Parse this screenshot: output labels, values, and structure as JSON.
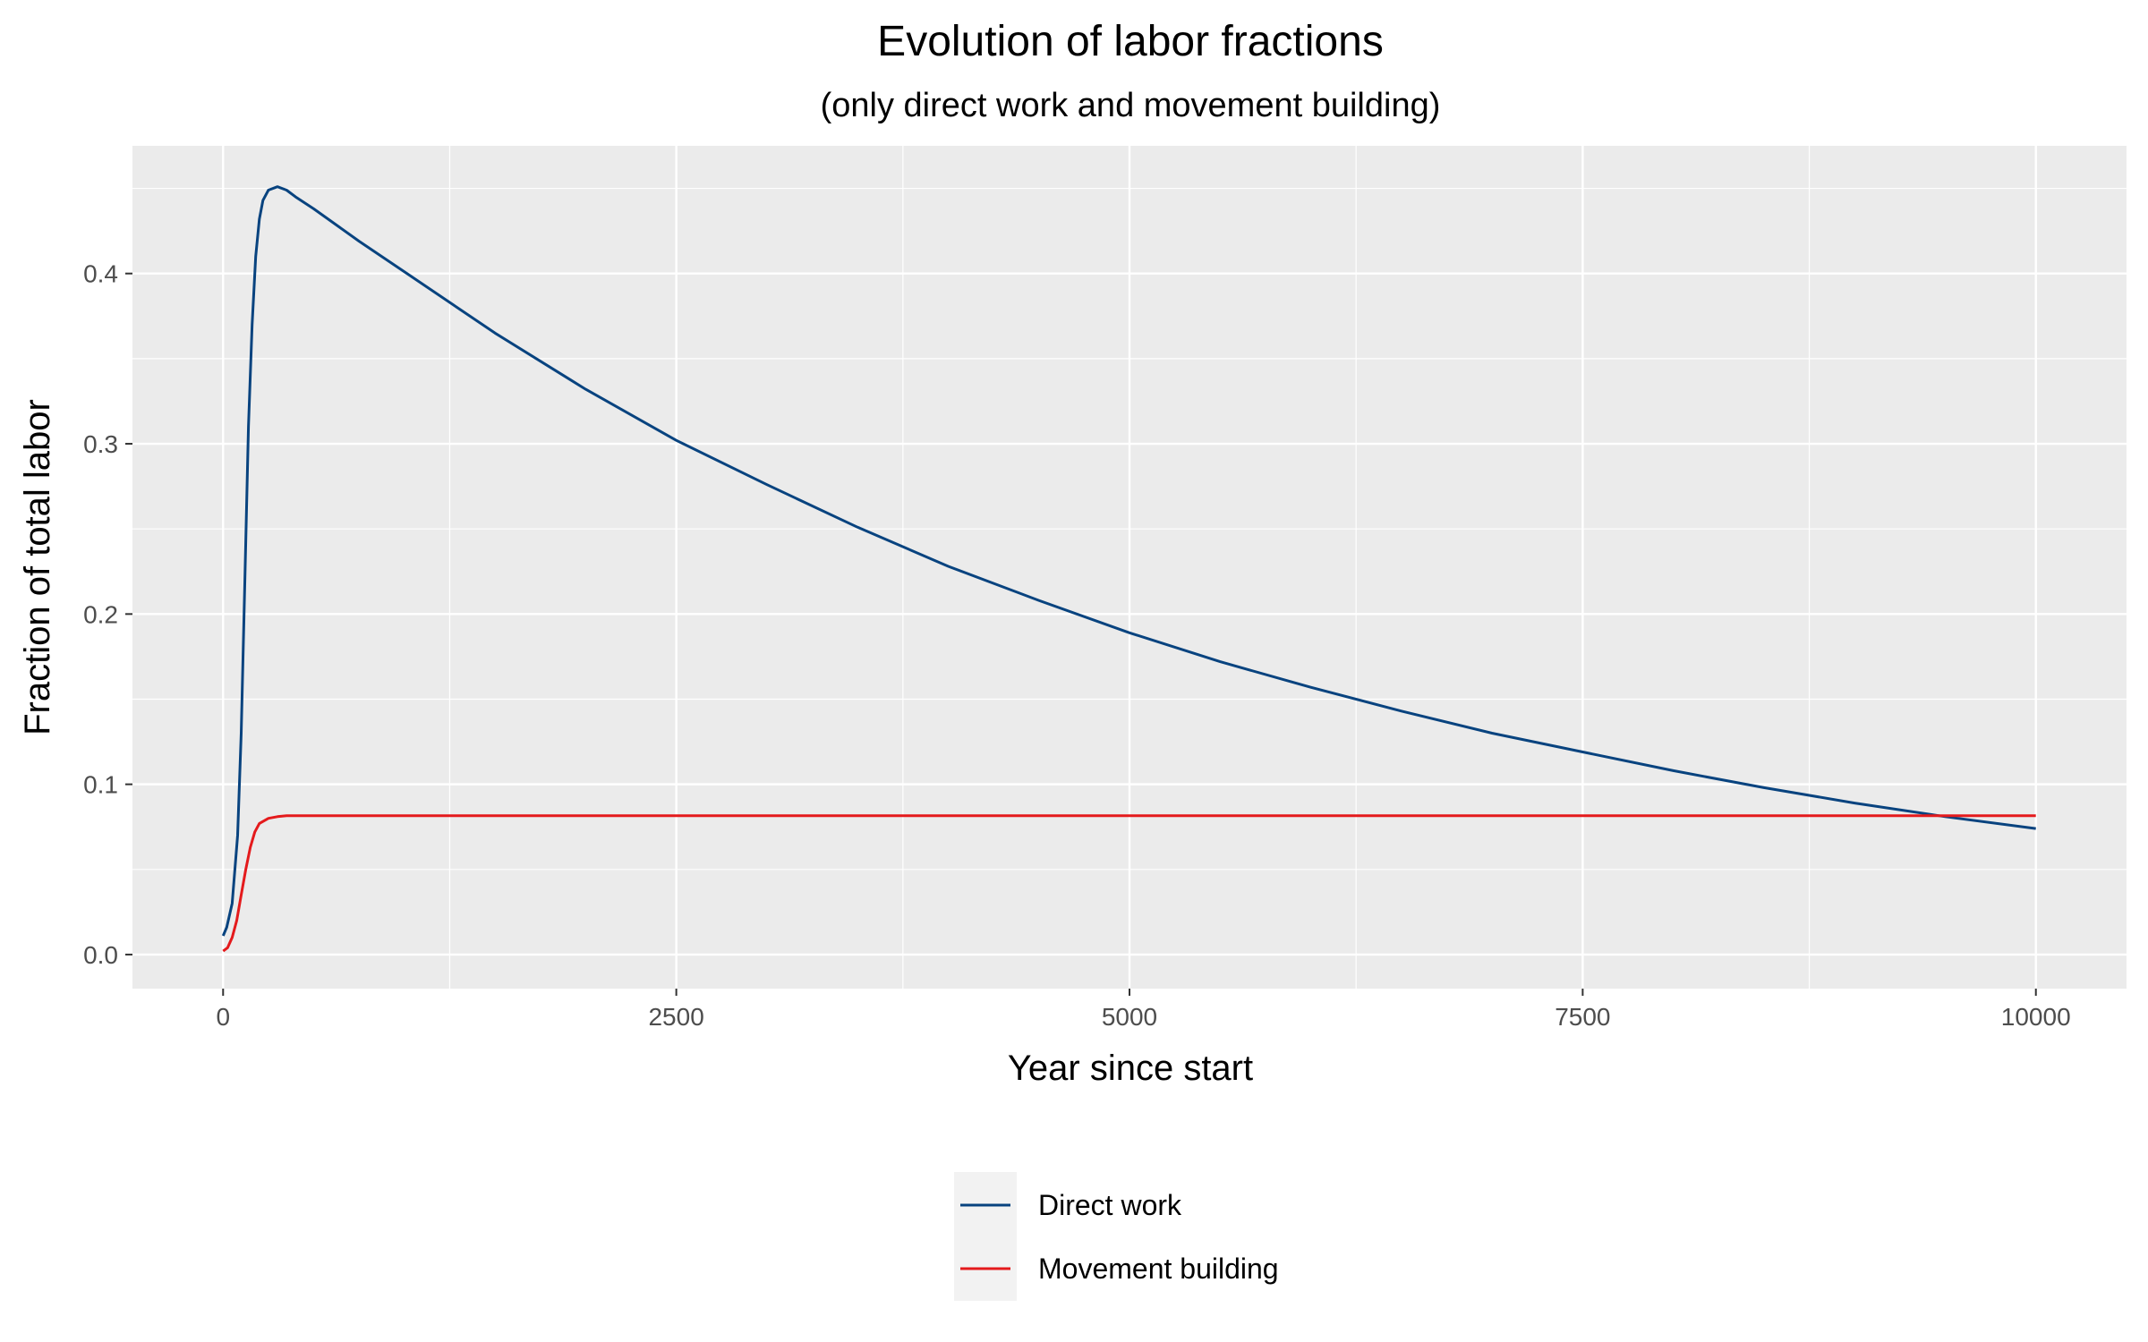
{
  "chart_data": {
    "type": "line",
    "title": "Evolution of labor fractions",
    "subtitle": "(only direct work and movement building)",
    "xlabel": "Year since start",
    "ylabel": "Fraction of total labor",
    "xlim": [
      -500,
      10500
    ],
    "ylim": [
      -0.02,
      0.475
    ],
    "xticks": [
      0,
      2500,
      5000,
      7500,
      10000
    ],
    "xtick_labels": [
      "0",
      "2500",
      "5000",
      "7500",
      "10000"
    ],
    "yticks": [
      0.0,
      0.1,
      0.2,
      0.3,
      0.4
    ],
    "ytick_labels": [
      "0.0",
      "0.1",
      "0.2",
      "0.3",
      "0.4"
    ],
    "grid": true,
    "legend_position": "bottom",
    "series": [
      {
        "name": "Direct work",
        "color": "#08437f",
        "x": [
          0,
          20,
          50,
          80,
          100,
          120,
          140,
          160,
          180,
          200,
          220,
          250,
          300,
          350,
          400,
          500,
          750,
          1000,
          1500,
          2000,
          2500,
          3000,
          3500,
          4000,
          4500,
          5000,
          5500,
          6000,
          6500,
          7000,
          7500,
          8000,
          8500,
          9000,
          9500,
          10000
        ],
        "y": [
          0.011,
          0.016,
          0.03,
          0.07,
          0.13,
          0.22,
          0.31,
          0.37,
          0.41,
          0.432,
          0.443,
          0.449,
          0.451,
          0.449,
          0.445,
          0.438,
          0.419,
          0.401,
          0.365,
          0.332,
          0.302,
          0.276,
          0.251,
          0.228,
          0.208,
          0.189,
          0.172,
          0.157,
          0.143,
          0.13,
          0.119,
          0.108,
          0.098,
          0.089,
          0.081,
          0.074
        ]
      },
      {
        "name": "Movement building",
        "color": "#e41a1c",
        "x": [
          0,
          25,
          50,
          75,
          100,
          125,
          150,
          175,
          200,
          250,
          300,
          350,
          500,
          1000,
          2500,
          5000,
          7500,
          10000
        ],
        "y": [
          0.002,
          0.004,
          0.01,
          0.02,
          0.035,
          0.05,
          0.063,
          0.072,
          0.077,
          0.08,
          0.081,
          0.0815,
          0.0815,
          0.0815,
          0.0815,
          0.0815,
          0.0815,
          0.0815
        ]
      }
    ]
  }
}
